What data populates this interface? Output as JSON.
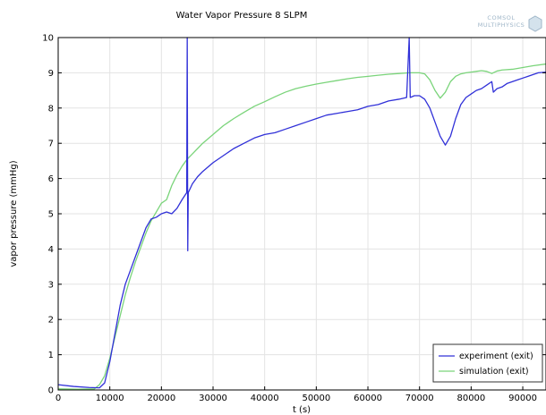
{
  "logo": {
    "line1": "COMSOL",
    "line2": "MULTIPHYSICS",
    "color": "#9fb6c8"
  },
  "chart_data": {
    "type": "line",
    "title": "Water Vapor Pressure 8 SLPM",
    "xlabel": "t (s)",
    "ylabel": "vapor pressure (mmHg)",
    "xlim": [
      0,
      94500
    ],
    "ylim": [
      0,
      10
    ],
    "xticks": [
      0,
      10000,
      20000,
      30000,
      40000,
      50000,
      60000,
      70000,
      80000,
      90000
    ],
    "yticks": [
      0,
      1,
      2,
      3,
      4,
      5,
      6,
      7,
      8,
      9,
      10
    ],
    "grid": true,
    "legend_position": "bottom-right",
    "series": [
      {
        "name": "experiment (exit)",
        "color": "#3030d8",
        "points": [
          [
            0,
            0.15
          ],
          [
            3000,
            0.1
          ],
          [
            6000,
            0.07
          ],
          [
            8000,
            0.06
          ],
          [
            9000,
            0.2
          ],
          [
            10000,
            0.8
          ],
          [
            11000,
            1.6
          ],
          [
            12000,
            2.4
          ],
          [
            13000,
            3.0
          ],
          [
            14000,
            3.4
          ],
          [
            15000,
            3.8
          ],
          [
            16000,
            4.2
          ],
          [
            17000,
            4.6
          ],
          [
            18000,
            4.85
          ],
          [
            19000,
            4.9
          ],
          [
            20000,
            5.0
          ],
          [
            21000,
            5.05
          ],
          [
            22000,
            5.0
          ],
          [
            23000,
            5.15
          ],
          [
            24000,
            5.4
          ],
          [
            24900,
            5.6
          ],
          [
            25000,
            10
          ],
          [
            25100,
            3.95
          ],
          [
            25200,
            5.6
          ],
          [
            26000,
            5.85
          ],
          [
            27000,
            6.05
          ],
          [
            28000,
            6.2
          ],
          [
            30000,
            6.45
          ],
          [
            32000,
            6.65
          ],
          [
            34000,
            6.85
          ],
          [
            36000,
            7.0
          ],
          [
            38000,
            7.15
          ],
          [
            40000,
            7.25
          ],
          [
            42000,
            7.3
          ],
          [
            44000,
            7.4
          ],
          [
            46000,
            7.5
          ],
          [
            48000,
            7.6
          ],
          [
            50000,
            7.7
          ],
          [
            52000,
            7.8
          ],
          [
            54000,
            7.85
          ],
          [
            56000,
            7.9
          ],
          [
            58000,
            7.95
          ],
          [
            60000,
            8.05
          ],
          [
            62000,
            8.1
          ],
          [
            64000,
            8.2
          ],
          [
            66000,
            8.25
          ],
          [
            67500,
            8.3
          ],
          [
            68000,
            10
          ],
          [
            68200,
            8.3
          ],
          [
            69000,
            8.35
          ],
          [
            70000,
            8.35
          ],
          [
            71000,
            8.25
          ],
          [
            72000,
            8.0
          ],
          [
            73000,
            7.6
          ],
          [
            74000,
            7.2
          ],
          [
            75000,
            6.95
          ],
          [
            76000,
            7.2
          ],
          [
            77000,
            7.7
          ],
          [
            78000,
            8.1
          ],
          [
            79000,
            8.3
          ],
          [
            80000,
            8.4
          ],
          [
            81000,
            8.5
          ],
          [
            82000,
            8.55
          ],
          [
            83000,
            8.65
          ],
          [
            84000,
            8.75
          ],
          [
            84300,
            8.45
          ],
          [
            85000,
            8.55
          ],
          [
            86000,
            8.6
          ],
          [
            87000,
            8.7
          ],
          [
            88000,
            8.75
          ],
          [
            89000,
            8.8
          ],
          [
            90000,
            8.85
          ],
          [
            91000,
            8.9
          ],
          [
            92000,
            8.95
          ],
          [
            93000,
            9.0
          ],
          [
            94500,
            9.02
          ]
        ]
      },
      {
        "name": "simulation (exit)",
        "color": "#7ad47a",
        "points": [
          [
            0,
            0.03
          ],
          [
            4000,
            0.02
          ],
          [
            7000,
            0.03
          ],
          [
            8000,
            0.15
          ],
          [
            9000,
            0.4
          ],
          [
            10000,
            0.9
          ],
          [
            11000,
            1.5
          ],
          [
            12000,
            2.1
          ],
          [
            13000,
            2.7
          ],
          [
            14000,
            3.2
          ],
          [
            15000,
            3.65
          ],
          [
            16000,
            4.05
          ],
          [
            17000,
            4.45
          ],
          [
            18000,
            4.8
          ],
          [
            19000,
            5.05
          ],
          [
            20000,
            5.3
          ],
          [
            21000,
            5.4
          ],
          [
            22000,
            5.8
          ],
          [
            23000,
            6.1
          ],
          [
            24000,
            6.35
          ],
          [
            25000,
            6.55
          ],
          [
            26000,
            6.7
          ],
          [
            27000,
            6.85
          ],
          [
            28000,
            7.0
          ],
          [
            30000,
            7.25
          ],
          [
            32000,
            7.5
          ],
          [
            34000,
            7.7
          ],
          [
            36000,
            7.88
          ],
          [
            38000,
            8.05
          ],
          [
            40000,
            8.18
          ],
          [
            42000,
            8.32
          ],
          [
            44000,
            8.45
          ],
          [
            46000,
            8.55
          ],
          [
            48000,
            8.62
          ],
          [
            50000,
            8.68
          ],
          [
            52000,
            8.73
          ],
          [
            54000,
            8.78
          ],
          [
            56000,
            8.83
          ],
          [
            58000,
            8.87
          ],
          [
            60000,
            8.9
          ],
          [
            62000,
            8.93
          ],
          [
            64000,
            8.96
          ],
          [
            66000,
            8.98
          ],
          [
            68000,
            9.0
          ],
          [
            70000,
            9.0
          ],
          [
            71000,
            8.97
          ],
          [
            72000,
            8.8
          ],
          [
            73000,
            8.5
          ],
          [
            74000,
            8.28
          ],
          [
            75000,
            8.45
          ],
          [
            76000,
            8.75
          ],
          [
            77000,
            8.9
          ],
          [
            78000,
            8.97
          ],
          [
            79000,
            9.0
          ],
          [
            80000,
            9.02
          ],
          [
            81000,
            9.04
          ],
          [
            82000,
            9.06
          ],
          [
            83000,
            9.04
          ],
          [
            84000,
            8.98
          ],
          [
            85000,
            9.05
          ],
          [
            86000,
            9.08
          ],
          [
            88000,
            9.1
          ],
          [
            90000,
            9.15
          ],
          [
            92000,
            9.2
          ],
          [
            94500,
            9.25
          ]
        ]
      }
    ]
  }
}
